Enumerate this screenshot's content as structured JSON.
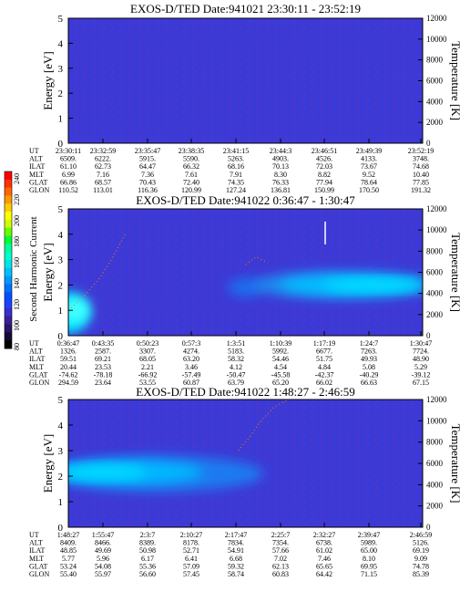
{
  "colorbar": {
    "label": "Second Harmonic Current",
    "ticks": [
      "240",
      "220",
      "200",
      "180",
      "160",
      "140",
      "120",
      "100",
      "80"
    ],
    "colors": [
      "#ff0000",
      "#ff3300",
      "#ff6600",
      "#ff9900",
      "#ffcc00",
      "#ffff00",
      "#ccff00",
      "#66ff00",
      "#00ff33",
      "#00ff99",
      "#00ffcc",
      "#00e5e5",
      "#00bfff",
      "#0099ff",
      "#0073ff",
      "#0050ff",
      "#2040ff",
      "#3a2ecc",
      "#3a1f99",
      "#2a1566",
      "#150a33",
      "#000000"
    ]
  },
  "chart_data": [
    {
      "type": "heatmap",
      "title": "EXOS-D/TED   Date:941021  23:30:11 - 23:52:19",
      "ylabel": "Energy [eV]",
      "y2label": "Temperature [K]",
      "ylim": [
        0,
        5
      ],
      "y2lim": [
        0,
        12000
      ],
      "yticks": [
        "0",
        "1",
        "2",
        "3",
        "4",
        "5"
      ],
      "y2ticks": [
        "0",
        "2000",
        "4000",
        "6000",
        "8000",
        "10000",
        "12000"
      ],
      "background": "#3a3ad8",
      "blobs": [],
      "lines": [],
      "spikes": [],
      "ephemeris": {
        "labels": [
          "UT",
          "ALT",
          "ILAT",
          "MLT",
          "GLAT",
          "GLON"
        ],
        "columns": [
          [
            "23:30:11",
            "6509.",
            "61.10",
            "6.99",
            "66.86",
            "110.52"
          ],
          [
            "23:32:59",
            "6222.",
            "62.73",
            "7.16",
            "68.57",
            "113.01"
          ],
          [
            "23:35:47",
            "5915.",
            "64.47",
            "7.36",
            "70.43",
            "116.36"
          ],
          [
            "23:38:35",
            "5590.",
            "66.32",
            "7.61",
            "72.40",
            "120.99"
          ],
          [
            "23:41:15",
            "5263.",
            "68.16",
            "7.91",
            "74.35",
            "127.24"
          ],
          [
            "23:44:3",
            "4903.",
            "70.13",
            "8.30",
            "76.33",
            "136.81"
          ],
          [
            "23:46:51",
            "4526.",
            "72.03",
            "8.82",
            "77.94",
            "150.99"
          ],
          [
            "23:49:39",
            "4133.",
            "73.67",
            "9.52",
            "78.64",
            "170.50"
          ],
          [
            "23:52:19",
            "3748.",
            "74.68",
            "10.40",
            "77.85",
            "191.32"
          ]
        ]
      }
    },
    {
      "type": "heatmap",
      "title": "EXOS-D/TED   Date:941022  0:36:47 - 1:30:47",
      "ylabel": "Energy [eV]",
      "y2label": "Temperature [K]",
      "ylim": [
        0,
        5
      ],
      "y2lim": [
        0,
        12000
      ],
      "yticks": [
        "0",
        "1",
        "2",
        "3",
        "4",
        "5"
      ],
      "y2ticks": [
        "0",
        "2000",
        "4000",
        "6000",
        "8000",
        "10000",
        "12000"
      ],
      "background": "#3a3ad8",
      "blobs": [
        {
          "cx": 0.0,
          "cy": 0.9,
          "rx": 0.06,
          "ry": 0.8,
          "color": "#00e6ff"
        },
        {
          "cx": 0.02,
          "cy": 1.0,
          "rx": 0.04,
          "ry": 0.5,
          "color": "#40ffff"
        },
        {
          "cx": 0.5,
          "cy": 1.9,
          "rx": 0.05,
          "ry": 0.35,
          "color": "#1a6ef0"
        },
        {
          "cx": 0.78,
          "cy": 2.0,
          "rx": 0.26,
          "ry": 0.55,
          "color": "#1a8cf0"
        },
        {
          "cx": 0.8,
          "cy": 2.0,
          "rx": 0.2,
          "ry": 0.35,
          "color": "#00c0ff"
        },
        {
          "cx": 0.86,
          "cy": 2.0,
          "rx": 0.14,
          "ry": 0.22,
          "color": "#00e0ff"
        }
      ],
      "lines": [
        {
          "points": [
            [
              0.0,
              1.0
            ],
            [
              0.04,
              1.5
            ],
            [
              0.09,
              2.3
            ],
            [
              0.13,
              3.2
            ],
            [
              0.16,
              4.0
            ]
          ],
          "color": "#ff8000"
        },
        {
          "points": [
            [
              0.5,
              2.8
            ],
            [
              0.53,
              3.1
            ],
            [
              0.56,
              2.9
            ]
          ],
          "color": "#ff8000"
        }
      ],
      "spikes": [
        {
          "x": 0.725,
          "y0": 3.6,
          "y1": 4.5,
          "color": "#ffffff"
        }
      ],
      "ephemeris": {
        "labels": [
          "UT",
          "ALT",
          "ILAT",
          "MLT",
          "GLAT",
          "GLON"
        ],
        "columns": [
          [
            "0:36:47",
            "1326.",
            "59.51",
            "20.44",
            "-74.62",
            "294.59"
          ],
          [
            "0:43:35",
            "2587.",
            "69.21",
            "23.53",
            "-78.18",
            "23.64"
          ],
          [
            "0:50:23",
            "3307.",
            "68.05",
            "2.21",
            "-66.92",
            "53.55"
          ],
          [
            "0:57:3",
            "4274.",
            "63.20",
            "3.46",
            "-57.49",
            "60.87"
          ],
          [
            "1:3:51",
            "5183.",
            "58.32",
            "4.12",
            "-50.47",
            "63.79"
          ],
          [
            "1:10:39",
            "5992.",
            "54.46",
            "4.54",
            "-45.58",
            "65.20"
          ],
          [
            "1:17:19",
            "6677.",
            "51.75",
            "4.84",
            "-42.37",
            "66.02"
          ],
          [
            "1:24:7",
            "7263.",
            "49.93",
            "5.08",
            "-40.29",
            "66.63"
          ],
          [
            "1:30:47",
            "7724.",
            "48.90",
            "5.29",
            "-39.12",
            "67.15"
          ]
        ]
      }
    },
    {
      "type": "heatmap",
      "title": "EXOS-D/TED   Date:941022  1:48:27 - 2:46:59",
      "ylabel": "Energy [eV]",
      "y2label": "Temperature [K]",
      "ylim": [
        0,
        5
      ],
      "y2lim": [
        0,
        12000
      ],
      "yticks": [
        "0",
        "1",
        "2",
        "3",
        "4",
        "5"
      ],
      "y2ticks": [
        "0",
        "2000",
        "4000",
        "6000",
        "8000",
        "10000",
        "12000"
      ],
      "background": "#3a3ad8",
      "blobs": [
        {
          "cx": 0.25,
          "cy": 2.1,
          "rx": 0.3,
          "ry": 0.7,
          "color": "#1a7af0"
        },
        {
          "cx": 0.16,
          "cy": 2.15,
          "rx": 0.22,
          "ry": 0.45,
          "color": "#00b8ff"
        },
        {
          "cx": 0.1,
          "cy": 2.15,
          "rx": 0.12,
          "ry": 0.25,
          "color": "#00ddff"
        }
      ],
      "lines": [
        {
          "points": [
            [
              0.48,
              3.0
            ],
            [
              0.51,
              3.5
            ],
            [
              0.54,
              4.1
            ],
            [
              0.58,
              4.7
            ],
            [
              0.62,
              5.0
            ]
          ],
          "color": "#ff8000"
        }
      ],
      "spikes": [],
      "ephemeris": {
        "labels": [
          "UT",
          "ALT",
          "ILAT",
          "MLT",
          "GLAT",
          "GLON"
        ],
        "columns": [
          [
            "1:48:27",
            "8409.",
            "48.85",
            "5.77",
            "53.24",
            "55.40"
          ],
          [
            "1:55:47",
            "8466.",
            "49.69",
            "5.96",
            "54.08",
            "55.97"
          ],
          [
            "2:3:7",
            "8389.",
            "50.98",
            "6.17",
            "55.36",
            "56.60"
          ],
          [
            "2:10:27",
            "8178.",
            "52.71",
            "6.41",
            "57.09",
            "57.45"
          ],
          [
            "2:17:47",
            "7834.",
            "54.91",
            "6.68",
            "59.32",
            "58.74"
          ],
          [
            "2:25:7",
            "7354.",
            "57.66",
            "7.02",
            "62.13",
            "60.83"
          ],
          [
            "2:32:27",
            "6738.",
            "61.02",
            "7.46",
            "65.65",
            "64.42"
          ],
          [
            "2:39:47",
            "5989.",
            "65.00",
            "8.10",
            "69.95",
            "71.15"
          ],
          [
            "2:46:59",
            "5126.",
            "69.19",
            "9.09",
            "74.78",
            "85.39"
          ]
        ]
      }
    }
  ]
}
